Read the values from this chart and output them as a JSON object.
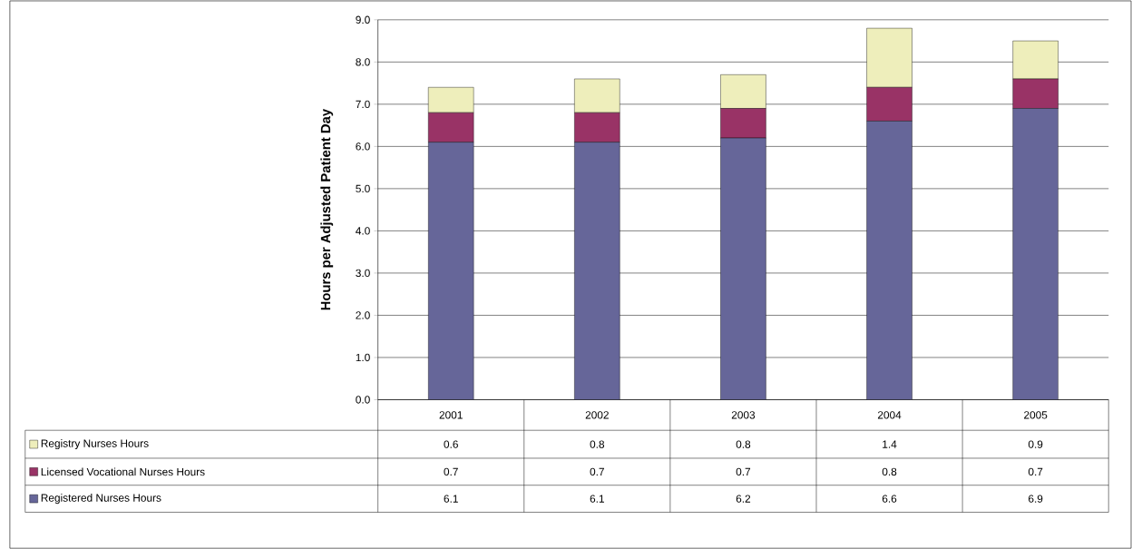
{
  "chart_data": {
    "type": "bar",
    "stacked": true,
    "ylabel": "Hours per Adjusted Patient Day",
    "categories": [
      "2001",
      "2002",
      "2003",
      "2004",
      "2005"
    ],
    "series": [
      {
        "name": "Registered Nurses Hours",
        "color": "#666699",
        "values": [
          6.1,
          6.1,
          6.2,
          6.6,
          6.9
        ]
      },
      {
        "name": "Licensed Vocational Nurses Hours",
        "color": "#993366",
        "values": [
          0.7,
          0.7,
          0.7,
          0.8,
          0.7
        ]
      },
      {
        "name": "Registry Nurses Hours",
        "color": "#eeeebb",
        "values": [
          0.6,
          0.8,
          0.8,
          1.4,
          0.9
        ]
      }
    ],
    "ylim": [
      0,
      9
    ],
    "yticks": [
      {
        "value": 0,
        "label": "0.0"
      },
      {
        "value": 1,
        "label": "1.0"
      },
      {
        "value": 2,
        "label": "2.0"
      },
      {
        "value": 3,
        "label": "3.0"
      },
      {
        "value": 4,
        "label": "4.0"
      },
      {
        "value": 5,
        "label": "5.0"
      },
      {
        "value": 6,
        "label": "6.0"
      },
      {
        "value": 7,
        "label": "7.0"
      },
      {
        "value": 8,
        "label": "8.0"
      },
      {
        "value": 9,
        "label": "9.0"
      }
    ],
    "grid": "y",
    "legend": "bottom",
    "data_labels": true
  }
}
